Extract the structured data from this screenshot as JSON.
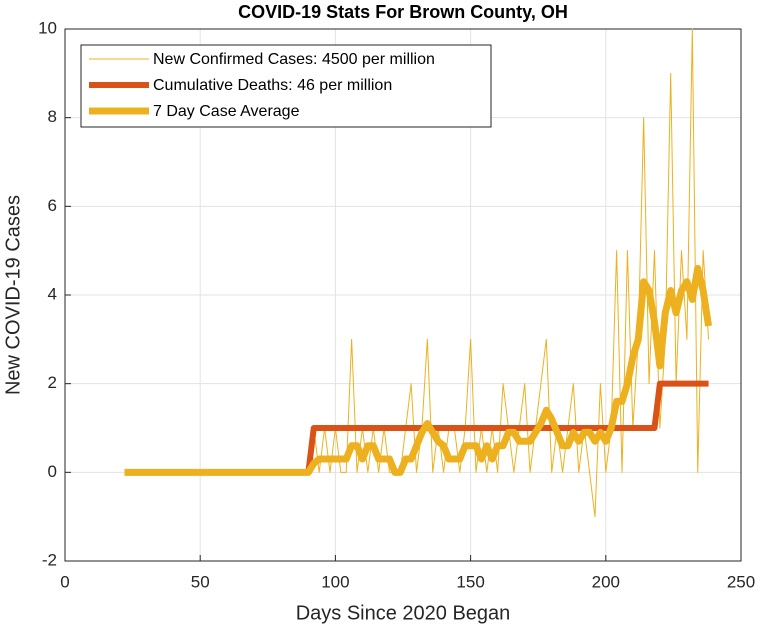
{
  "chart_data": {
    "type": "line",
    "title": "COVID-19 Stats For Brown County, OH",
    "x_label": "Days Since 2020 Began",
    "y_label": "New COVID-19 Cases",
    "xlim": [
      0,
      250
    ],
    "xticks": [
      0,
      50,
      100,
      150,
      200,
      250
    ],
    "ylim": [
      -2,
      10
    ],
    "yticks": [
      -2,
      0,
      2,
      4,
      6,
      8,
      10
    ],
    "grid": true,
    "legend": "upper left",
    "x": [
      22,
      89,
      90,
      92,
      94,
      96,
      98,
      100,
      102,
      104,
      106,
      108,
      110,
      112,
      114,
      116,
      118,
      120,
      122,
      124,
      126,
      128,
      130,
      132,
      134,
      136,
      138,
      140,
      142,
      144,
      146,
      148,
      150,
      152,
      154,
      156,
      158,
      160,
      162,
      164,
      166,
      168,
      170,
      172,
      174,
      176,
      178,
      180,
      182,
      184,
      186,
      188,
      190,
      192,
      194,
      196,
      198,
      200,
      202,
      204,
      206,
      208,
      210,
      212,
      214,
      216,
      218,
      220,
      222,
      224,
      226,
      228,
      230,
      232,
      234,
      236,
      238
    ],
    "series": [
      {
        "name": "New Confirmed Cases: 4500 per million",
        "color": "#EDB120",
        "values": [
          0,
          0,
          0,
          1,
          0,
          1,
          0,
          1,
          0,
          0,
          3,
          0,
          1,
          0,
          1,
          0,
          1,
          0,
          0,
          0,
          1,
          2,
          0,
          1,
          3,
          0,
          1,
          0,
          1,
          1,
          0,
          1,
          3,
          0,
          1,
          0,
          1,
          0,
          2,
          1,
          0,
          1,
          2,
          0,
          1,
          2,
          3,
          0,
          1,
          0,
          1,
          2,
          0,
          1,
          0,
          -1,
          2,
          0,
          1,
          5,
          0,
          5,
          1,
          3,
          8,
          2,
          5,
          1,
          3,
          9,
          2,
          5,
          3,
          10,
          0,
          5,
          3
        ]
      },
      {
        "name": "Cumulative Deaths: 46 per million",
        "color": "#D95319",
        "values": [
          0,
          0,
          0,
          1,
          1,
          1,
          1,
          1,
          1,
          1,
          1,
          1,
          1,
          1,
          1,
          1,
          1,
          1,
          1,
          1,
          1,
          1,
          1,
          1,
          1,
          1,
          1,
          1,
          1,
          1,
          1,
          1,
          1,
          1,
          1,
          1,
          1,
          1,
          1,
          1,
          1,
          1,
          1,
          1,
          1,
          1,
          1,
          1,
          1,
          1,
          1,
          1,
          1,
          1,
          1,
          1,
          1,
          1,
          1,
          1,
          1,
          1,
          1,
          1,
          1,
          1,
          1,
          2,
          2,
          2,
          2,
          2,
          2,
          2,
          2,
          2,
          2
        ]
      },
      {
        "name": "7 Day Case Average",
        "color": "#EDB120",
        "values": [
          0,
          0,
          0,
          0.2,
          0.3,
          0.3,
          0.3,
          0.3,
          0.3,
          0.3,
          0.6,
          0.6,
          0.3,
          0.6,
          0.6,
          0.3,
          0.3,
          0.3,
          0,
          0,
          0.3,
          0.3,
          0.6,
          0.9,
          1.1,
          0.9,
          0.7,
          0.6,
          0.3,
          0.3,
          0.3,
          0.6,
          0.6,
          0.6,
          0.3,
          0.6,
          0.3,
          0.6,
          0.6,
          0.9,
          0.9,
          0.7,
          0.7,
          0.7,
          0.9,
          1.1,
          1.4,
          1.2,
          0.9,
          0.6,
          0.6,
          0.9,
          0.7,
          0.9,
          0.9,
          0.7,
          0.9,
          0.7,
          1.0,
          1.6,
          1.6,
          2.0,
          2.6,
          3.0,
          4.3,
          4.1,
          3.4,
          2.4,
          3.6,
          4.1,
          3.6,
          4.1,
          4.3,
          3.9,
          4.6,
          4.1,
          3.3
        ]
      }
    ]
  }
}
